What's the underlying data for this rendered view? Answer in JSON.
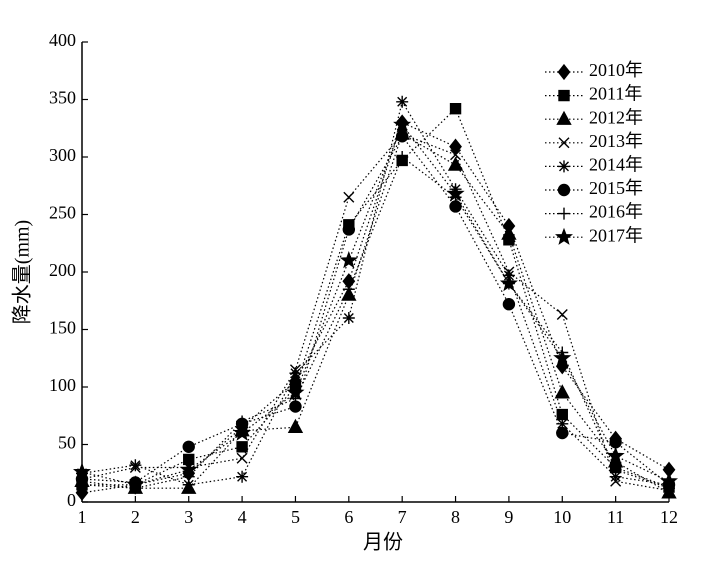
{
  "chart_data": {
    "type": "line",
    "x_label": "月份",
    "y_label": "降水量(mm)",
    "x": [
      1,
      2,
      3,
      4,
      5,
      6,
      7,
      8,
      9,
      10,
      11,
      12
    ],
    "xlim": [
      1,
      12
    ],
    "xticks": [
      1,
      2,
      3,
      4,
      5,
      6,
      7,
      8,
      9,
      10,
      11,
      12
    ],
    "ylim": [
      0,
      400
    ],
    "yticks": [
      0,
      50,
      100,
      150,
      200,
      250,
      300,
      350,
      400
    ],
    "grid": false,
    "legend": "upper-right",
    "series": [
      {
        "name": "2010年",
        "color": "#000000",
        "marker": "diamond",
        "values": [
          8,
          15,
          25,
          65,
          105,
          192,
          330,
          309,
          240,
          118,
          55,
          28
        ]
      },
      {
        "name": "2011年",
        "color": "#000000",
        "marker": "square",
        "values": [
          15,
          15,
          37,
          48,
          100,
          241,
          297,
          342,
          228,
          76,
          30,
          13
        ]
      },
      {
        "name": "2012年",
        "color": "#000000",
        "marker": "triangle",
        "values": [
          18,
          12,
          12,
          62,
          65,
          180,
          320,
          293,
          233,
          95,
          35,
          8
        ]
      },
      {
        "name": "2013年",
        "color": "#000000",
        "marker": "x",
        "values": [
          20,
          30,
          30,
          38,
          115,
          265,
          320,
          302,
          200,
          163,
          18,
          10
        ]
      },
      {
        "name": "2014年",
        "color": "#000000",
        "marker": "asterisk",
        "values": [
          25,
          32,
          15,
          22,
          112,
          160,
          348,
          272,
          197,
          68,
          22,
          15
        ]
      },
      {
        "name": "2015年",
        "color": "#000000",
        "marker": "circle",
        "values": [
          20,
          17,
          48,
          68,
          83,
          237,
          318,
          257,
          172,
          60,
          52,
          15
        ]
      },
      {
        "name": "2016年",
        "color": "#000000",
        "marker": "plus",
        "values": [
          15,
          12,
          22,
          70,
          90,
          185,
          300,
          265,
          190,
          130,
          28,
          12
        ]
      },
      {
        "name": "2017年",
        "color": "#000000",
        "marker": "star",
        "values": [
          26,
          15,
          28,
          60,
          95,
          210,
          328,
          268,
          190,
          125,
          40,
          18
        ]
      }
    ]
  }
}
